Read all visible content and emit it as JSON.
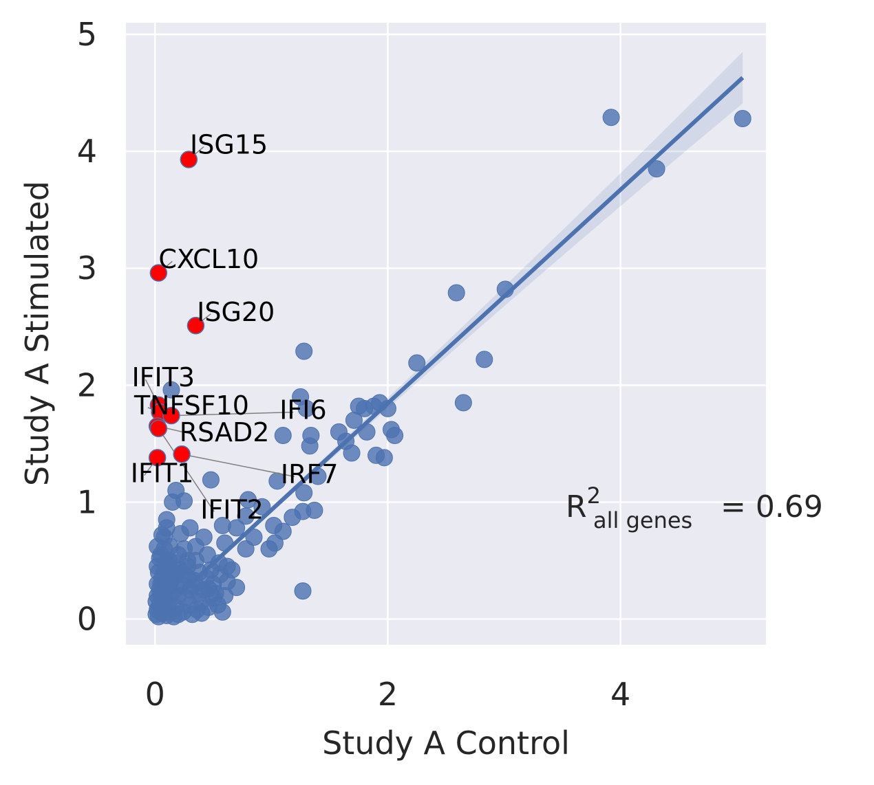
{
  "chart_data": {
    "type": "scatter",
    "xlabel": "Study A Control",
    "ylabel": "Study A Stimulated",
    "xlim": [
      -0.25,
      5.25
    ],
    "ylim": [
      -0.22,
      5.1
    ],
    "xticks": [
      0,
      2,
      4
    ],
    "yticks": [
      0,
      1,
      2,
      3,
      4,
      5
    ],
    "grid": true,
    "background": "#EAEAF2",
    "colors": {
      "points": "#4C72B0",
      "highlight": "#FF0000",
      "regression": "#4C72B0",
      "leader": "#808080"
    },
    "annotation": {
      "r2_symbol": "R",
      "r2_superscript": "2",
      "r2_subscript": "all genes",
      "r2_text": "= 0.69"
    },
    "regression": {
      "x": [
        0,
        5.05
      ],
      "y": [
        0.02,
        4.63
      ],
      "ci_halfwidth_end": 0.2
    },
    "highlighted_genes": [
      {
        "name": "ISG15",
        "x": 0.29,
        "y": 3.93
      },
      {
        "name": "CXCL10",
        "x": 0.03,
        "y": 2.96
      },
      {
        "name": "ISG20",
        "x": 0.35,
        "y": 2.51
      },
      {
        "name": "IFIT3",
        "x": 0.03,
        "y": 1.83
      },
      {
        "name": "TNFSF10",
        "x": 0.04,
        "y": 1.77
      },
      {
        "name": "IFI6",
        "x": 0.14,
        "y": 1.74
      },
      {
        "name": "RSAD2",
        "x": 0.02,
        "y": 1.65
      },
      {
        "name": "IRF7",
        "x": 0.23,
        "y": 1.41
      },
      {
        "name": "IFIT1",
        "x": 0.02,
        "y": 1.38
      },
      {
        "name": "IFIT2",
        "x": 0.03,
        "y": 1.63
      }
    ],
    "points": [
      [
        3.92,
        4.29
      ],
      [
        5.05,
        4.28
      ],
      [
        4.31,
        3.85
      ],
      [
        3.01,
        2.82
      ],
      [
        2.59,
        2.79
      ],
      [
        2.83,
        2.22
      ],
      [
        2.25,
        2.19
      ],
      [
        2.65,
        1.85
      ],
      [
        1.28,
        2.29
      ],
      [
        1.25,
        1.9
      ],
      [
        1.3,
        1.8
      ],
      [
        1.93,
        1.85
      ],
      [
        1.88,
        1.82
      ],
      [
        1.75,
        1.82
      ],
      [
        1.8,
        1.8
      ],
      [
        1.71,
        1.7
      ],
      [
        2.0,
        1.8
      ],
      [
        2.03,
        1.62
      ],
      [
        2.06,
        1.57
      ],
      [
        1.82,
        1.6
      ],
      [
        1.58,
        1.6
      ],
      [
        1.64,
        1.52
      ],
      [
        1.69,
        1.42
      ],
      [
        1.9,
        1.4
      ],
      [
        1.97,
        1.38
      ],
      [
        1.1,
        1.57
      ],
      [
        1.34,
        1.57
      ],
      [
        1.33,
        1.48
      ],
      [
        0.14,
        1.96
      ],
      [
        1.4,
        1.22
      ],
      [
        1.05,
        1.18
      ],
      [
        0.48,
        1.19
      ],
      [
        1.28,
        1.08
      ],
      [
        0.8,
        1.02
      ],
      [
        0.92,
        0.96
      ],
      [
        1.37,
        0.93
      ],
      [
        1.27,
        0.92
      ],
      [
        1.18,
        0.87
      ],
      [
        0.78,
        0.88
      ],
      [
        1.02,
        0.8
      ],
      [
        1.1,
        0.75
      ],
      [
        0.58,
        0.8
      ],
      [
        0.7,
        0.78
      ],
      [
        1.03,
        0.65
      ],
      [
        0.85,
        0.7
      ],
      [
        0.98,
        0.6
      ],
      [
        0.78,
        0.6
      ],
      [
        0.6,
        0.65
      ],
      [
        0.42,
        0.7
      ],
      [
        0.3,
        0.78
      ],
      [
        0.22,
        0.73
      ],
      [
        0.1,
        0.78
      ],
      [
        0.08,
        0.7
      ],
      [
        0.13,
        0.62
      ],
      [
        0.25,
        0.6
      ],
      [
        0.35,
        0.62
      ],
      [
        0.45,
        0.55
      ],
      [
        0.55,
        0.48
      ],
      [
        0.62,
        0.45
      ],
      [
        0.48,
        0.42
      ],
      [
        0.38,
        0.4
      ],
      [
        0.28,
        0.45
      ],
      [
        0.18,
        0.48
      ],
      [
        0.05,
        0.55
      ],
      [
        0.02,
        0.45
      ],
      [
        0.08,
        0.4
      ],
      [
        0.15,
        0.35
      ],
      [
        0.22,
        0.3
      ],
      [
        0.32,
        0.28
      ],
      [
        0.42,
        0.25
      ],
      [
        0.52,
        0.22
      ],
      [
        0.7,
        0.27
      ],
      [
        0.62,
        0.32
      ],
      [
        0.58,
        0.06
      ],
      [
        1.27,
        0.24
      ],
      [
        0.25,
        1.01
      ],
      [
        0.15,
        1.0
      ],
      [
        0.18,
        1.1
      ],
      [
        0.1,
        0.85
      ],
      [
        0.35,
        0.5
      ],
      [
        0.28,
        0.5
      ],
      [
        0.2,
        0.55
      ],
      [
        0.12,
        0.5
      ],
      [
        0.06,
        0.35
      ],
      [
        0.1,
        0.28
      ],
      [
        0.04,
        0.25
      ],
      [
        0.14,
        0.22
      ],
      [
        0.2,
        0.2
      ],
      [
        0.26,
        0.18
      ],
      [
        0.3,
        0.12
      ],
      [
        0.36,
        0.08
      ],
      [
        0.4,
        0.15
      ],
      [
        0.46,
        0.1
      ],
      [
        0.5,
        0.18
      ],
      [
        0.4,
        0.05
      ],
      [
        0.32,
        0.04
      ],
      [
        0.24,
        0.06
      ],
      [
        0.18,
        0.1
      ],
      [
        0.12,
        0.14
      ],
      [
        0.08,
        0.18
      ],
      [
        0.04,
        0.12
      ],
      [
        0.02,
        0.08
      ],
      [
        0.01,
        0.04
      ],
      [
        0.03,
        0.02
      ],
      [
        0.06,
        0.05
      ],
      [
        0.1,
        0.03
      ],
      [
        0.14,
        0.06
      ],
      [
        0.16,
        0.02
      ],
      [
        0.2,
        0.04
      ],
      [
        0.07,
        0.1
      ],
      [
        0.02,
        0.2
      ],
      [
        0.05,
        0.3
      ],
      [
        0.03,
        0.4
      ],
      [
        0.08,
        0.6
      ],
      [
        0.06,
        0.72
      ],
      [
        0.16,
        0.4
      ],
      [
        0.22,
        0.42
      ],
      [
        0.28,
        0.36
      ],
      [
        0.34,
        0.33
      ],
      [
        0.44,
        0.35
      ],
      [
        0.5,
        0.3
      ],
      [
        0.56,
        0.38
      ],
      [
        0.6,
        0.2
      ],
      [
        0.66,
        0.42
      ],
      [
        0.54,
        0.12
      ],
      [
        0.46,
        0.26
      ],
      [
        0.38,
        0.22
      ],
      [
        0.3,
        0.25
      ],
      [
        0.26,
        0.38
      ],
      [
        0.12,
        0.45
      ],
      [
        0.02,
        0.62
      ],
      [
        0.04,
        0.52
      ],
      [
        0.09,
        0.48
      ],
      [
        0.11,
        0.38
      ],
      [
        0.18,
        0.28
      ],
      [
        0.01,
        0.15
      ],
      [
        0.02,
        0.3
      ],
      [
        0.05,
        0.2
      ],
      [
        0.09,
        0.26
      ],
      [
        0.13,
        0.32
      ]
    ]
  }
}
